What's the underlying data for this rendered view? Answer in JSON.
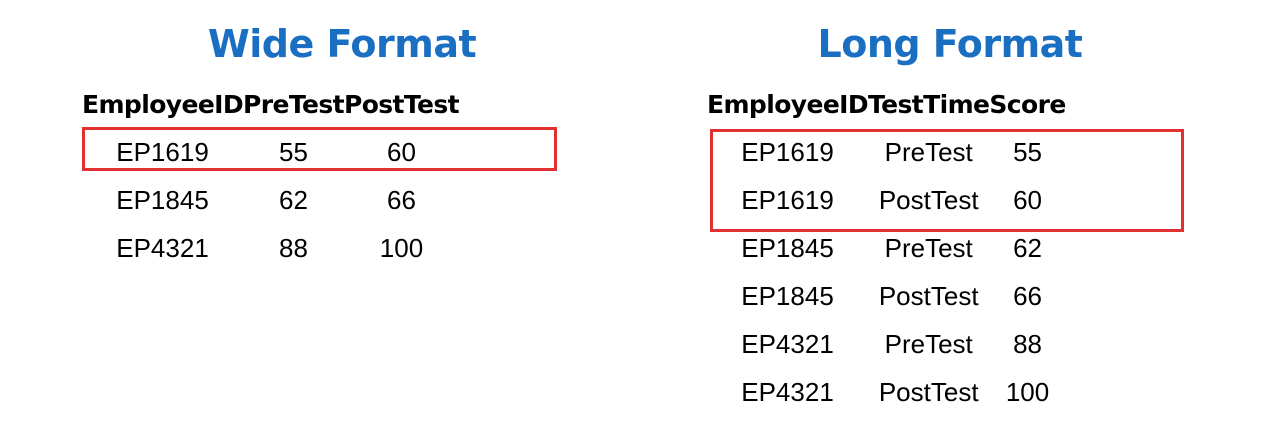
{
  "wide": {
    "title": "Wide Format",
    "columns": [
      "EmployeeID",
      "PreTest",
      "PostTest"
    ],
    "rows": [
      [
        "EP1619",
        "55",
        "60"
      ],
      [
        "EP1845",
        "62",
        "66"
      ],
      [
        "EP4321",
        "88",
        "100"
      ]
    ]
  },
  "long": {
    "title": "Long Format",
    "columns": [
      "EmployeeID",
      "TestTime",
      "Score"
    ],
    "rows": [
      [
        "EP1619",
        "PreTest",
        "55"
      ],
      [
        "EP1619",
        "PostTest",
        "60"
      ],
      [
        "EP1845",
        "PreTest",
        "62"
      ],
      [
        "EP1845",
        "PostTest",
        "66"
      ],
      [
        "EP4321",
        "PreTest",
        "88"
      ],
      [
        "EP4321",
        "PostTest",
        "100"
      ]
    ]
  },
  "highlight_color": "#e03030",
  "title_color": "#1a6fc2"
}
